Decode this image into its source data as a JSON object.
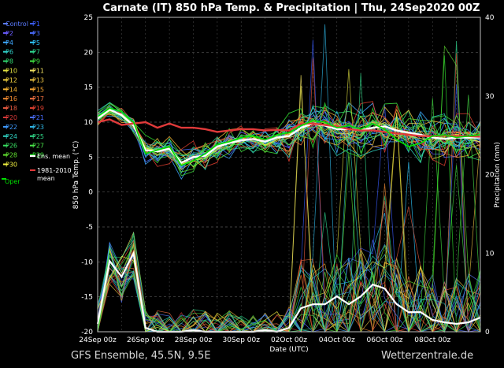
{
  "chart_data": {
    "type": "line",
    "title": "Carnate  (IT)  850 hPa Temp. & Precipitation | Thu, 24Sep2020 00Z",
    "xlabel": "Date (UTC)",
    "ylabel": "850 hPa Temp. (°C)",
    "y2label": "Precipitation (mm)",
    "x_ticks": [
      "24Sep 00z",
      "26Sep 00z",
      "28Sep 00z",
      "30Sep 00z",
      "02Oct 00z",
      "04Oct 00z",
      "06Oct 00z",
      "08Oct 00z"
    ],
    "x_range_days": [
      0,
      16
    ],
    "ylim": [
      -20,
      25
    ],
    "y_ticks": [
      -20,
      -15,
      -10,
      -5,
      0,
      5,
      10,
      15,
      20,
      25
    ],
    "y2lim": [
      0,
      40
    ],
    "y2_ticks": [
      0,
      10,
      20,
      30,
      40
    ],
    "grid": true,
    "legend_position": "left",
    "legend": [
      {
        "label": "Control",
        "color": "#5b7bff"
      },
      {
        "label": "P1",
        "color": "#3a5cff"
      },
      {
        "label": "P2",
        "color": "#6a5cff"
      },
      {
        "label": "P3",
        "color": "#4a6cff"
      },
      {
        "label": "P4",
        "color": "#3fa8ff"
      },
      {
        "label": "P5",
        "color": "#2fc8ff"
      },
      {
        "label": "P6",
        "color": "#2fd0c8"
      },
      {
        "label": "P7",
        "color": "#2fd890"
      },
      {
        "label": "P8",
        "color": "#30d870"
      },
      {
        "label": "P9",
        "color": "#40e040"
      },
      {
        "label": "P10",
        "color": "#e0e040"
      },
      {
        "label": "P11",
        "color": "#f0e060"
      },
      {
        "label": "P12",
        "color": "#f0d040"
      },
      {
        "label": "P13",
        "color": "#e8c040"
      },
      {
        "label": "P14",
        "color": "#f0b030"
      },
      {
        "label": "P15",
        "color": "#f0a030"
      },
      {
        "label": "P16",
        "color": "#f08a30"
      },
      {
        "label": "P17",
        "color": "#f07040"
      },
      {
        "label": "P18",
        "color": "#e85a40"
      },
      {
        "label": "P19",
        "color": "#e04030"
      },
      {
        "label": "P20",
        "color": "#d83838"
      },
      {
        "label": "P21",
        "color": "#4a6cff"
      },
      {
        "label": "P22",
        "color": "#3f9aff"
      },
      {
        "label": "P23",
        "color": "#2fb8e8"
      },
      {
        "label": "P24",
        "color": "#2fd0c0"
      },
      {
        "label": "P25",
        "color": "#30d888"
      },
      {
        "label": "P26",
        "color": "#38dc60"
      },
      {
        "label": "P27",
        "color": "#48e048"
      },
      {
        "label": "P28",
        "color": "#60e030"
      },
      {
        "label": "P29",
        "color": "#30e030"
      },
      {
        "label": "P30",
        "color": "#f0f040"
      },
      {
        "label": "Ens. mean",
        "color": "#ffffff"
      },
      {
        "label": "1981-2010 mean",
        "color": "#e03a3a"
      },
      {
        "label": "Oper",
        "color": "#00e000"
      }
    ],
    "series": [
      {
        "name": "Ens. mean",
        "color": "#ffffff",
        "x": [
          0,
          0.5,
          1,
          1.5,
          2,
          2.5,
          3,
          3.5,
          4,
          4.5,
          5,
          5.5,
          6,
          6.5,
          7,
          7.5,
          8,
          8.5,
          9,
          9.5,
          10,
          10.5,
          11,
          11.5,
          12,
          12.5,
          13,
          13.5,
          14,
          14.5,
          15,
          15.5,
          16
        ],
        "values": [
          10.5,
          11.8,
          11.0,
          9.5,
          6.0,
          5.8,
          6.2,
          4.2,
          5.0,
          5.2,
          6.5,
          7.0,
          7.4,
          7.6,
          7.2,
          7.8,
          8.0,
          9.2,
          9.8,
          9.5,
          9.0,
          9.0,
          8.8,
          9.2,
          9.4,
          8.8,
          8.5,
          8.2,
          7.8,
          7.6,
          7.8,
          7.8,
          7.8
        ]
      },
      {
        "name": "1981-2010 mean",
        "color": "#e03a3a",
        "x": [
          0,
          0.5,
          1,
          1.5,
          2,
          2.5,
          3,
          3.5,
          4,
          4.5,
          5,
          5.5,
          6,
          6.5,
          7,
          7.5,
          8,
          8.5,
          9,
          9.5,
          10,
          10.5,
          11,
          11.5,
          12,
          12.5,
          13,
          13.5,
          14,
          14.5,
          15,
          15.5,
          16
        ],
        "values": [
          10.0,
          10.4,
          9.6,
          9.8,
          10.0,
          9.2,
          9.8,
          9.2,
          9.2,
          9.0,
          8.6,
          8.8,
          9.0,
          9.0,
          8.8,
          8.9,
          8.8,
          9.8,
          9.8,
          9.6,
          9.4,
          9.0,
          8.8,
          8.8,
          8.6,
          8.4,
          8.2,
          8.0,
          8.0,
          8.1,
          8.0,
          8.0,
          7.9
        ]
      },
      {
        "name": "Oper",
        "color": "#00e000",
        "x": [
          0,
          0.5,
          1,
          1.5,
          2,
          2.5,
          3,
          3.5,
          4,
          4.5,
          5,
          5.5,
          6,
          6.5,
          7,
          7.5,
          8,
          8.5,
          9,
          9.5,
          10,
          10.5,
          11,
          11.5,
          12,
          12.5,
          13,
          13.5,
          14,
          14.5,
          15,
          15.5,
          16
        ],
        "values": [
          10.8,
          12.0,
          11.5,
          10.0,
          5.5,
          6.0,
          6.5,
          3.8,
          4.5,
          5.5,
          6.8,
          7.2,
          7.8,
          8.0,
          7.5,
          8.2,
          8.5,
          9.5,
          10.2,
          10.0,
          9.2,
          9.5,
          9.0,
          9.8,
          9.0,
          7.5,
          6.5,
          7.0,
          8.0,
          8.2,
          7.8,
          8.0,
          8.2
        ]
      }
    ],
    "precip_ens_mean_mm": {
      "x": [
        0,
        0.5,
        1,
        1.5,
        2,
        2.5,
        3,
        3.5,
        4,
        4.5,
        5,
        5.5,
        6,
        6.5,
        7,
        7.5,
        8,
        8.5,
        9,
        9.5,
        10,
        10.5,
        11,
        11.5,
        12,
        12.5,
        13,
        13.5,
        14,
        14.5,
        15,
        15.5,
        16
      ],
      "values": [
        1,
        9,
        7,
        10,
        0.5,
        0,
        0,
        0,
        0.2,
        0,
        0,
        0,
        0,
        0,
        0.2,
        0,
        0.5,
        3,
        3.5,
        3.5,
        4.5,
        3.5,
        4.5,
        6,
        5.5,
        3.5,
        2.5,
        2.5,
        1.5,
        1.2,
        1.0,
        1.2,
        1.8
      ]
    }
  },
  "footer": {
    "left": "GFS Ensemble, 45.5N, 9.5E",
    "right": "Wetterzentrale.de"
  }
}
